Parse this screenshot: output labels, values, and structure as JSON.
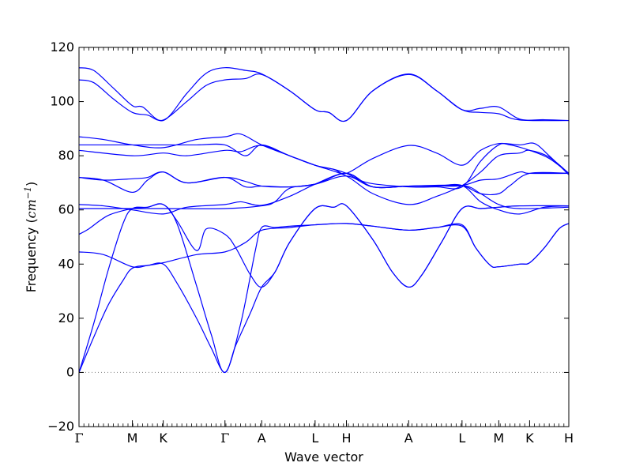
{
  "chart_data": {
    "type": "line",
    "xlabel": "Wave vector",
    "ylabel_text": "Frequency (",
    "ylabel_unit": "cm",
    "ylabel_exp": "−1",
    "ylabel_close": ")",
    "ylim": [
      -20,
      120
    ],
    "yticks": [
      -20,
      0,
      20,
      40,
      60,
      80,
      100,
      120
    ],
    "ytick_labels": [
      "−20",
      "0",
      "20",
      "40",
      "60",
      "80",
      "100",
      "120"
    ],
    "xlim": [
      0,
      1
    ],
    "xticks": [
      {
        "label": "Γ",
        "x": 0.0
      },
      {
        "label": "M",
        "x": 0.109
      },
      {
        "label": "K",
        "x": 0.172
      },
      {
        "label": "Γ",
        "x": 0.298
      },
      {
        "label": "A",
        "x": 0.373
      },
      {
        "label": "L",
        "x": 0.482
      },
      {
        "label": "H",
        "x": 0.546
      },
      {
        "label": "A",
        "x": 0.673
      },
      {
        "label": "L",
        "x": 0.782
      },
      {
        "label": "M",
        "x": 0.857
      },
      {
        "label": "K",
        "x": 0.92
      },
      {
        "label": "H",
        "x": 1.0
      }
    ],
    "zero_line": {
      "y": 0,
      "style": "dotted",
      "color": "#808080"
    },
    "line_color": "#0000ff",
    "series": [
      {
        "points": [
          [
            0.0,
            112.5
          ],
          [
            0.03,
            111.5
          ],
          [
            0.07,
            105
          ],
          [
            0.109,
            98.5
          ],
          [
            0.13,
            98
          ],
          [
            0.172,
            93
          ],
          [
            0.22,
            103
          ],
          [
            0.26,
            110.5
          ],
          [
            0.298,
            112.5
          ],
          [
            0.34,
            111.5
          ],
          [
            0.373,
            110.2
          ],
          [
            0.43,
            104
          ],
          [
            0.482,
            97
          ],
          [
            0.51,
            96
          ],
          [
            0.546,
            93
          ],
          [
            0.6,
            104
          ],
          [
            0.673,
            110.2
          ],
          [
            0.73,
            104
          ],
          [
            0.782,
            97
          ],
          [
            0.82,
            97.5
          ],
          [
            0.857,
            98
          ],
          [
            0.9,
            93.5
          ],
          [
            0.95,
            93.3
          ],
          [
            1.0,
            93
          ]
        ]
      },
      {
        "points": [
          [
            0.0,
            108
          ],
          [
            0.03,
            107
          ],
          [
            0.07,
            101
          ],
          [
            0.109,
            96
          ],
          [
            0.14,
            95
          ],
          [
            0.172,
            93.2
          ],
          [
            0.22,
            100
          ],
          [
            0.26,
            106
          ],
          [
            0.298,
            108
          ],
          [
            0.34,
            108.5
          ],
          [
            0.373,
            110
          ],
          [
            0.43,
            104
          ],
          [
            0.482,
            97
          ],
          [
            0.51,
            96
          ],
          [
            0.546,
            93
          ],
          [
            0.6,
            104
          ],
          [
            0.673,
            110
          ],
          [
            0.73,
            104
          ],
          [
            0.782,
            97
          ],
          [
            0.82,
            96
          ],
          [
            0.857,
            95.5
          ],
          [
            0.9,
            93.2
          ],
          [
            1.0,
            93
          ]
        ]
      },
      {
        "points": [
          [
            0.0,
            87
          ],
          [
            0.05,
            86
          ],
          [
            0.109,
            84
          ],
          [
            0.172,
            83
          ],
          [
            0.24,
            86
          ],
          [
            0.298,
            87
          ],
          [
            0.33,
            88
          ],
          [
            0.373,
            84
          ],
          [
            0.43,
            80
          ],
          [
            0.482,
            76.5
          ],
          [
            0.52,
            75
          ],
          [
            0.546,
            73.5
          ],
          [
            0.59,
            70
          ],
          [
            0.673,
            68.5
          ],
          [
            0.73,
            68.5
          ],
          [
            0.782,
            68.5
          ],
          [
            0.82,
            78
          ],
          [
            0.857,
            84
          ],
          [
            0.88,
            84
          ],
          [
            0.92,
            82
          ],
          [
            0.96,
            79
          ],
          [
            1.0,
            73.5
          ]
        ]
      },
      {
        "points": [
          [
            0.0,
            84
          ],
          [
            0.109,
            84
          ],
          [
            0.172,
            84
          ],
          [
            0.24,
            84
          ],
          [
            0.298,
            84
          ],
          [
            0.34,
            80
          ],
          [
            0.373,
            84
          ],
          [
            0.43,
            80
          ],
          [
            0.482,
            76.5
          ],
          [
            0.52,
            75
          ],
          [
            0.546,
            73.5
          ],
          [
            0.6,
            79
          ],
          [
            0.673,
            83.8
          ],
          [
            0.73,
            81
          ],
          [
            0.782,
            76.5
          ],
          [
            0.82,
            82
          ],
          [
            0.857,
            84.5
          ],
          [
            0.9,
            84
          ],
          [
            0.93,
            84.5
          ],
          [
            0.96,
            80
          ],
          [
            1.0,
            73
          ]
        ]
      },
      {
        "points": [
          [
            0.0,
            82
          ],
          [
            0.109,
            80
          ],
          [
            0.172,
            81
          ],
          [
            0.22,
            80
          ],
          [
            0.298,
            82
          ],
          [
            0.33,
            81.5
          ],
          [
            0.373,
            83.8
          ],
          [
            0.43,
            80
          ],
          [
            0.482,
            76.5
          ],
          [
            0.546,
            72.5
          ],
          [
            0.6,
            66
          ],
          [
            0.673,
            62
          ],
          [
            0.73,
            65
          ],
          [
            0.782,
            69
          ],
          [
            0.82,
            74
          ],
          [
            0.857,
            80
          ],
          [
            0.9,
            81
          ],
          [
            0.92,
            82
          ],
          [
            0.96,
            79.5
          ],
          [
            1.0,
            73.5
          ]
        ]
      },
      {
        "points": [
          [
            0.0,
            72
          ],
          [
            0.05,
            71
          ],
          [
            0.109,
            66.5
          ],
          [
            0.14,
            71
          ],
          [
            0.172,
            74
          ],
          [
            0.22,
            70
          ],
          [
            0.298,
            72
          ],
          [
            0.34,
            70.5
          ],
          [
            0.373,
            68.8
          ],
          [
            0.43,
            68.5
          ],
          [
            0.482,
            69.5
          ],
          [
            0.546,
            73.5
          ],
          [
            0.6,
            68.5
          ],
          [
            0.673,
            68.8
          ],
          [
            0.73,
            68.8
          ],
          [
            0.782,
            69
          ],
          [
            0.82,
            71
          ],
          [
            0.857,
            71.5
          ],
          [
            0.9,
            74
          ],
          [
            0.92,
            73.5
          ],
          [
            1.0,
            73.5
          ]
        ]
      },
      {
        "points": [
          [
            0.0,
            72
          ],
          [
            0.05,
            71
          ],
          [
            0.109,
            71.5
          ],
          [
            0.14,
            72
          ],
          [
            0.172,
            74
          ],
          [
            0.22,
            70
          ],
          [
            0.298,
            72
          ],
          [
            0.34,
            68.5
          ],
          [
            0.373,
            68.8
          ],
          [
            0.43,
            68.5
          ],
          [
            0.482,
            69.5
          ],
          [
            0.546,
            72.5
          ],
          [
            0.6,
            68.5
          ],
          [
            0.673,
            68.8
          ],
          [
            0.73,
            68.8
          ],
          [
            0.782,
            69
          ],
          [
            0.82,
            66
          ],
          [
            0.857,
            66
          ],
          [
            0.88,
            69
          ],
          [
            0.92,
            73.5
          ],
          [
            1.0,
            73.5
          ]
        ]
      },
      {
        "points": [
          [
            0.0,
            62
          ],
          [
            0.05,
            61.5
          ],
          [
            0.109,
            60
          ],
          [
            0.172,
            58.5
          ],
          [
            0.22,
            61
          ],
          [
            0.298,
            62
          ],
          [
            0.33,
            63
          ],
          [
            0.373,
            61.7
          ],
          [
            0.43,
            65
          ],
          [
            0.482,
            69.5
          ],
          [
            0.546,
            73.5
          ],
          [
            0.6,
            68.5
          ],
          [
            0.673,
            68.8
          ],
          [
            0.73,
            68.8
          ],
          [
            0.782,
            69
          ],
          [
            0.82,
            63
          ],
          [
            0.857,
            60
          ],
          [
            0.9,
            58.5
          ],
          [
            0.95,
            61
          ],
          [
            1.0,
            61.5
          ]
        ]
      },
      {
        "points": [
          [
            0.0,
            60.5
          ],
          [
            0.109,
            60.5
          ],
          [
            0.172,
            60.5
          ],
          [
            0.298,
            60.5
          ],
          [
            0.373,
            61.5
          ],
          [
            0.4,
            63
          ],
          [
            0.43,
            68
          ],
          [
            0.482,
            69.5
          ],
          [
            0.546,
            73.5
          ],
          [
            0.6,
            68.5
          ],
          [
            0.673,
            68.8
          ],
          [
            0.782,
            69
          ],
          [
            0.82,
            66
          ],
          [
            0.857,
            62
          ],
          [
            0.9,
            60.5
          ],
          [
            1.0,
            61
          ]
        ]
      },
      {
        "points": [
          [
            0.0,
            51
          ],
          [
            0.02,
            53
          ],
          [
            0.06,
            58
          ],
          [
            0.109,
            60.5
          ],
          [
            0.14,
            61
          ],
          [
            0.172,
            62
          ],
          [
            0.2,
            56
          ],
          [
            0.24,
            45
          ],
          [
            0.26,
            53
          ],
          [
            0.298,
            51
          ],
          [
            0.32,
            46
          ],
          [
            0.35,
            36
          ],
          [
            0.373,
            31.5
          ],
          [
            0.4,
            37
          ],
          [
            0.43,
            48
          ],
          [
            0.482,
            60.5
          ],
          [
            0.52,
            61
          ],
          [
            0.546,
            61.5
          ],
          [
            0.6,
            49
          ],
          [
            0.64,
            37
          ],
          [
            0.673,
            31.5
          ],
          [
            0.7,
            36
          ],
          [
            0.74,
            48
          ],
          [
            0.782,
            60.5
          ],
          [
            0.82,
            60.5
          ],
          [
            0.857,
            61
          ],
          [
            0.9,
            61.5
          ],
          [
            1.0,
            61.5
          ]
        ]
      },
      {
        "points": [
          [
            0.0,
            44.5
          ],
          [
            0.05,
            43.5
          ],
          [
            0.109,
            39
          ],
          [
            0.14,
            39.5
          ],
          [
            0.172,
            40.5
          ],
          [
            0.24,
            43.5
          ],
          [
            0.298,
            44.5
          ],
          [
            0.34,
            48
          ],
          [
            0.373,
            52.5
          ],
          [
            0.43,
            53.5
          ],
          [
            0.482,
            54.5
          ],
          [
            0.546,
            55
          ],
          [
            0.6,
            54
          ],
          [
            0.673,
            52.5
          ],
          [
            0.73,
            53.5
          ],
          [
            0.782,
            54.5
          ],
          [
            0.81,
            46
          ],
          [
            0.84,
            39.5
          ],
          [
            0.857,
            39
          ],
          [
            0.9,
            40
          ],
          [
            0.92,
            40.5
          ],
          [
            0.95,
            46
          ],
          [
            0.98,
            53
          ],
          [
            1.0,
            55
          ]
        ]
      },
      {
        "points": [
          [
            0.0,
            0
          ],
          [
            0.03,
            18
          ],
          [
            0.06,
            38
          ],
          [
            0.09,
            55
          ],
          [
            0.109,
            60.5
          ],
          [
            0.14,
            61
          ],
          [
            0.172,
            62
          ],
          [
            0.2,
            55
          ],
          [
            0.24,
            32
          ],
          [
            0.27,
            14
          ],
          [
            0.298,
            0
          ],
          [
            0.33,
            18
          ],
          [
            0.36,
            45
          ],
          [
            0.373,
            53.5
          ],
          [
            0.4,
            53.5
          ],
          [
            0.43,
            54
          ],
          [
            0.482,
            54.5
          ],
          [
            0.546,
            55
          ],
          [
            0.6,
            54
          ],
          [
            0.673,
            52.5
          ],
          [
            0.73,
            53.5
          ],
          [
            0.782,
            54
          ],
          [
            0.81,
            46
          ],
          [
            0.84,
            39.5
          ],
          [
            0.857,
            39
          ],
          [
            0.9,
            40
          ],
          [
            0.92,
            40.5
          ],
          [
            0.95,
            46
          ],
          [
            0.98,
            53
          ],
          [
            1.0,
            55
          ]
        ]
      },
      {
        "points": [
          [
            0.0,
            0
          ],
          [
            0.03,
            13
          ],
          [
            0.06,
            25
          ],
          [
            0.09,
            34
          ],
          [
            0.109,
            38.5
          ],
          [
            0.14,
            39.5
          ],
          [
            0.172,
            40
          ],
          [
            0.2,
            33
          ],
          [
            0.24,
            20
          ],
          [
            0.27,
            9
          ],
          [
            0.298,
            0
          ],
          [
            0.32,
            10
          ],
          [
            0.35,
            22
          ],
          [
            0.373,
            31.5
          ],
          [
            0.4,
            37
          ],
          [
            0.43,
            48
          ],
          [
            0.482,
            60.5
          ],
          [
            0.52,
            61
          ],
          [
            0.546,
            61.5
          ],
          [
            0.6,
            49
          ],
          [
            0.64,
            37
          ],
          [
            0.673,
            31.5
          ],
          [
            0.7,
            36
          ],
          [
            0.74,
            48
          ],
          [
            0.782,
            60.5
          ],
          [
            0.82,
            60.5
          ],
          [
            0.857,
            61
          ],
          [
            0.9,
            61.5
          ],
          [
            1.0,
            61.5
          ]
        ]
      }
    ]
  }
}
